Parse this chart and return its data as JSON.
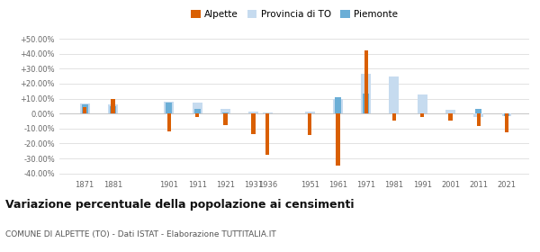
{
  "years_alpette": [
    1871,
    1881,
    1901,
    1911,
    1921,
    1931,
    1936,
    1951,
    1961,
    1971,
    1981,
    1991,
    2001,
    2011,
    2021
  ],
  "vals_alpette": [
    4.5,
    10.0,
    -12.0,
    -2.5,
    -7.5,
    -14.0,
    -27.5,
    -14.5,
    -35.0,
    42.0,
    -5.0,
    -2.5,
    -5.0,
    -8.5,
    -12.5
  ],
  "years_prov": [
    1871,
    1881,
    1901,
    1911,
    1921,
    1931,
    1936,
    1951,
    1961,
    1971,
    1981,
    1991,
    2001,
    2011,
    2021
  ],
  "vals_prov": [
    6.5,
    6.0,
    8.0,
    7.5,
    3.0,
    1.5,
    0.5,
    1.5,
    9.5,
    26.5,
    25.0,
    12.5,
    2.5,
    -2.0,
    -1.5
  ],
  "years_piem": [
    1871,
    1881,
    1901,
    1911,
    1921,
    1961,
    1971,
    2011,
    2021
  ],
  "vals_piem": [
    6.0,
    5.0,
    7.5,
    3.0,
    1.0,
    11.0,
    13.5,
    3.0,
    -1.5
  ],
  "color_alpette": "#d95f02",
  "color_prov": "#c6dbef",
  "color_piem": "#6baed6",
  "ylim": [
    -42,
    54
  ],
  "yticks": [
    -40,
    -30,
    -20,
    -10,
    0,
    10,
    20,
    30,
    40,
    50
  ],
  "ytick_labels": [
    "-40.00%",
    "-30.00%",
    "-20.00%",
    "-10.00%",
    "0.00%",
    "+10.00%",
    "+20.00%",
    "+30.00%",
    "+40.00%",
    "+50.00%"
  ],
  "xtick_years": [
    1871,
    1881,
    1901,
    1911,
    1921,
    1931,
    1936,
    1951,
    1961,
    1971,
    1981,
    1991,
    2001,
    2011,
    2021
  ],
  "title": "Variazione percentuale della popolazione ai censimenti",
  "subtitle": "COMUNE DI ALPETTE (TO) - Dati ISTAT - Elaborazione TUTTITALIA.IT",
  "background_color": "#ffffff",
  "grid_color": "#dddddd"
}
